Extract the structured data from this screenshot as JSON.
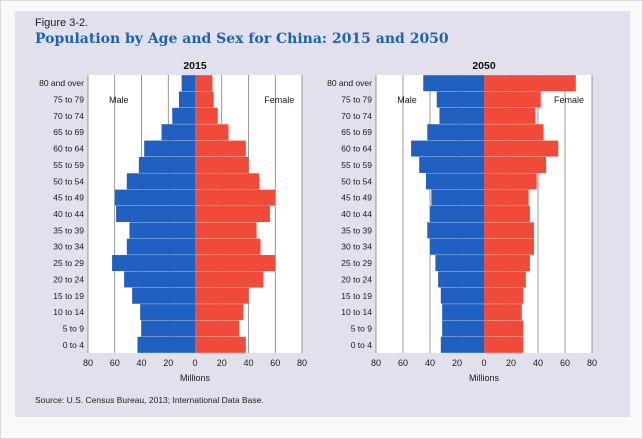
{
  "figure": {
    "label": "Figure 3-2.",
    "title": "Population by Age and Sex for China: 2015 and 2050",
    "source": "Source: U.S. Census Bureau, 2013; International Data Base."
  },
  "colors": {
    "male": "#2060c0",
    "female": "#f04a3a",
    "panel": "#e3e0ee"
  },
  "chart_data": [
    {
      "type": "bar",
      "orientation": "horizontal",
      "title": "2015",
      "xlabel": "Millions",
      "xlim": [
        -80,
        80
      ],
      "xticks": [
        "80",
        "60",
        "40",
        "20",
        "0",
        "20",
        "40",
        "60",
        "80"
      ],
      "grid": true,
      "categories": [
        "80 and over",
        "75 to 79",
        "70 to 74",
        "65 to 69",
        "60 to 64",
        "55 to 59",
        "50 to 54",
        "45 to 49",
        "40 to 44",
        "35 to 39",
        "30 to 34",
        "25 to 29",
        "20 to 24",
        "15 to 19",
        "10 to 14",
        "5 to 9",
        "0 to 4"
      ],
      "series": [
        {
          "name": "Male",
          "values": [
            -10,
            -12,
            -17,
            -25,
            -38,
            -42,
            -51,
            -60,
            -59,
            -49,
            -51,
            -62,
            -53,
            -47,
            -41,
            -40,
            -43
          ]
        },
        {
          "name": "Female",
          "values": [
            13,
            14,
            17,
            25,
            38,
            40,
            48,
            60,
            56,
            46,
            49,
            60,
            51,
            40,
            36,
            33,
            38
          ]
        }
      ]
    },
    {
      "type": "bar",
      "orientation": "horizontal",
      "title": "2050",
      "xlabel": "Millions",
      "xlim": [
        -80,
        80
      ],
      "xticks": [
        "80",
        "60",
        "40",
        "20",
        "0",
        "20",
        "40",
        "60",
        "80"
      ],
      "grid": true,
      "categories": [
        "80 and over",
        "75 to 79",
        "70 to 74",
        "65 to 69",
        "60 to 64",
        "55 to 59",
        "50 to 54",
        "45 to 49",
        "40 to 44",
        "35 to 39",
        "30 to 34",
        "25 to 29",
        "20 to 24",
        "15 to 19",
        "10 to 14",
        "5 to 9",
        "0 to 4"
      ],
      "series": [
        {
          "name": "Male",
          "values": [
            -45,
            -35,
            -33,
            -42,
            -54,
            -48,
            -43,
            -39,
            -40,
            -42,
            -40,
            -36,
            -34,
            -32,
            -31,
            -31,
            -32
          ]
        },
        {
          "name": "Female",
          "values": [
            68,
            42,
            38,
            44,
            55,
            46,
            39,
            33,
            34,
            37,
            37,
            34,
            31,
            29,
            28,
            29,
            29
          ]
        }
      ]
    }
  ]
}
